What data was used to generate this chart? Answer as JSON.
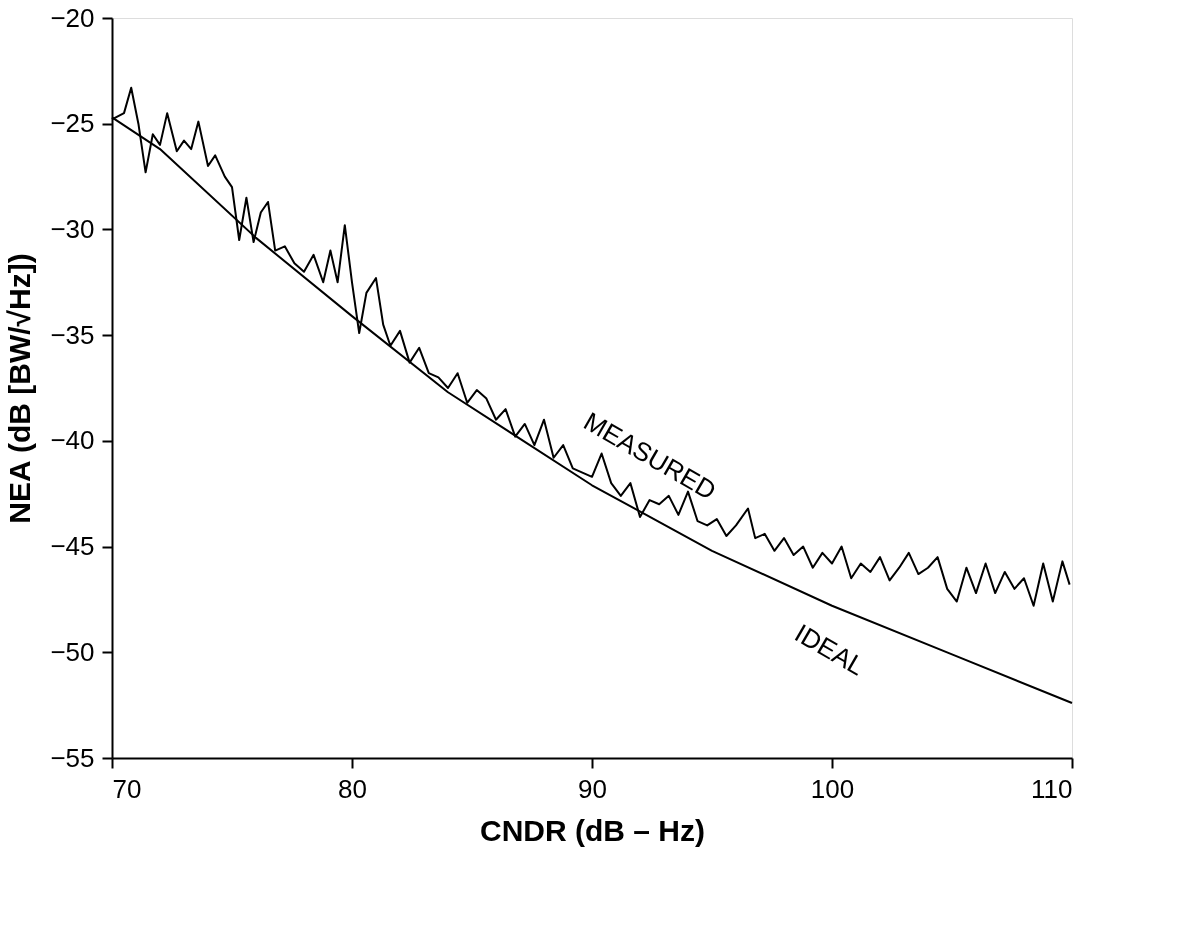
{
  "chart_data": {
    "type": "line",
    "xlabel": "CNDR (dB – Hz)",
    "ylabel": "NEA (dB [BW/√Hz])",
    "xlim": [
      70,
      110
    ],
    "xticks": [
      70,
      80,
      90,
      100,
      110
    ],
    "ylim": [
      -55,
      -20
    ],
    "yticks": [
      -55,
      -50,
      -45,
      -40,
      -35,
      -30,
      -25,
      -20
    ],
    "grid": false,
    "marker": "none",
    "line_style": "solid",
    "series": [
      {
        "name": "MEASURED",
        "color": "#000000",
        "x": [
          70.0,
          70.5,
          70.8,
          71.1,
          71.4,
          71.7,
          72.0,
          72.3,
          72.7,
          73.0,
          73.3,
          73.6,
          74.0,
          74.3,
          74.7,
          75.0,
          75.3,
          75.6,
          75.9,
          76.2,
          76.5,
          76.8,
          77.2,
          77.6,
          78.0,
          78.4,
          78.8,
          79.1,
          79.4,
          79.7,
          80.0,
          80.3,
          80.6,
          81.0,
          81.3,
          81.6,
          82.0,
          82.4,
          82.8,
          83.2,
          83.6,
          84.0,
          84.4,
          84.8,
          85.2,
          85.6,
          86.0,
          86.4,
          86.8,
          87.2,
          87.6,
          88.0,
          88.4,
          88.8,
          89.2,
          89.6,
          90.0,
          90.4,
          90.8,
          91.2,
          91.6,
          92.0,
          92.4,
          92.8,
          93.2,
          93.6,
          94.0,
          94.4,
          94.8,
          95.2,
          95.6,
          96.0,
          96.5,
          96.8,
          97.2,
          97.6,
          98.0,
          98.4,
          98.8,
          99.2,
          99.6,
          100.0,
          100.4,
          100.8,
          101.2,
          101.6,
          102.0,
          102.4,
          102.8,
          103.2,
          103.6,
          104.0,
          104.4,
          104.8,
          105.2,
          105.6,
          106.0,
          106.4,
          106.8,
          107.2,
          107.6,
          108.0,
          108.4,
          108.8,
          109.2,
          109.6,
          109.9
        ],
        "values": [
          -24.8,
          -24.5,
          -23.3,
          -25.0,
          -27.3,
          -25.5,
          -26.0,
          -24.5,
          -26.3,
          -25.8,
          -26.2,
          -24.9,
          -27.0,
          -26.5,
          -27.5,
          -28.0,
          -30.5,
          -28.5,
          -30.6,
          -29.2,
          -28.7,
          -31.0,
          -30.8,
          -31.6,
          -32.0,
          -31.2,
          -32.5,
          -31.0,
          -32.5,
          -29.8,
          -32.5,
          -34.9,
          -33.0,
          -32.3,
          -34.5,
          -35.5,
          -34.8,
          -36.3,
          -35.6,
          -36.8,
          -37.0,
          -37.5,
          -36.8,
          -38.2,
          -37.6,
          -38.0,
          -39.0,
          -38.5,
          -39.8,
          -39.2,
          -40.2,
          -39.0,
          -40.8,
          -40.2,
          -41.3,
          -41.5,
          -41.7,
          -40.6,
          -42.0,
          -42.6,
          -42.0,
          -43.6,
          -42.8,
          -43.0,
          -42.6,
          -43.5,
          -42.4,
          -43.8,
          -44.0,
          -43.7,
          -44.5,
          -44.0,
          -43.2,
          -44.6,
          -44.4,
          -45.2,
          -44.6,
          -45.4,
          -45.0,
          -46.0,
          -45.3,
          -45.8,
          -45.0,
          -46.5,
          -45.8,
          -46.2,
          -45.5,
          -46.6,
          -46.0,
          -45.3,
          -46.3,
          -46.0,
          -45.5,
          -47.0,
          -47.6,
          -46.0,
          -47.2,
          -45.8,
          -47.2,
          -46.2,
          -47.0,
          -46.5,
          -47.8,
          -45.8,
          -47.6,
          -45.7,
          -46.8
        ]
      },
      {
        "name": "IDEAL",
        "color": "#000000",
        "x": [
          70,
          72,
          76,
          80,
          84,
          90,
          95,
          100,
          105,
          110
        ],
        "values": [
          -24.7,
          -26.2,
          -30.4,
          -34.1,
          -37.7,
          -42.1,
          -45.2,
          -47.8,
          -50.1,
          -52.4
        ]
      }
    ]
  }
}
